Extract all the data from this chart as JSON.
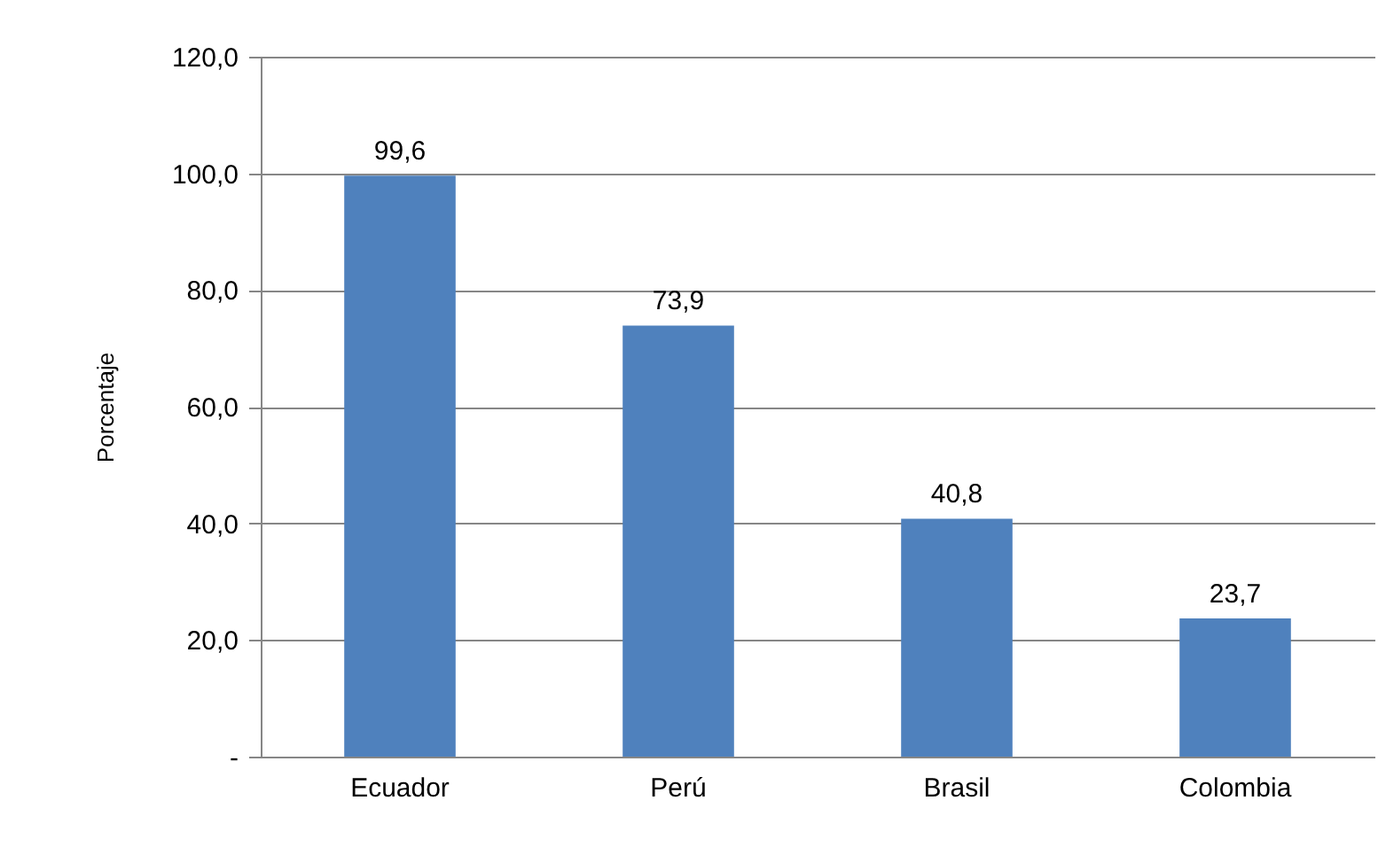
{
  "chart_data": {
    "type": "bar",
    "ylabel": "Porcentaje",
    "categories": [
      "Ecuador",
      "Perú",
      "Brasil",
      "Colombia"
    ],
    "values": [
      99.6,
      73.9,
      40.8,
      23.7
    ],
    "value_labels": [
      "99,6",
      "73,9",
      "40,8",
      "23,7"
    ],
    "color": "#4f81bd",
    "ylim": [
      0,
      120
    ],
    "yticks": [
      {
        "value": 0,
        "label": "-"
      },
      {
        "value": 20,
        "label": "20,0"
      },
      {
        "value": 40,
        "label": "40,0"
      },
      {
        "value": 60,
        "label": "60,0"
      },
      {
        "value": 80,
        "label": "80,0"
      },
      {
        "value": 100,
        "label": "100,0"
      },
      {
        "value": 120,
        "label": "120,0"
      }
    ],
    "grid": "y"
  }
}
